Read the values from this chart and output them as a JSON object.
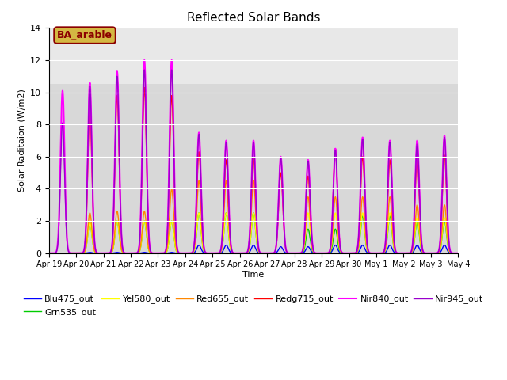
{
  "title": "Reflected Solar Bands",
  "xlabel": "Time",
  "ylabel": "Solar Raditaion (W/m2)",
  "ylim": [
    0,
    14
  ],
  "annotation": "BA_arable",
  "annotation_color": "#8B0000",
  "annotation_bg": "#d4b843",
  "legend_labels": [
    "Blu475_out",
    "Grn535_out",
    "Yel580_out",
    "Red655_out",
    "Redg715_out",
    "Nir840_out",
    "Nir945_out"
  ],
  "line_colors": [
    "#0000ff",
    "#00cc00",
    "#ffff00",
    "#ff8800",
    "#ff0000",
    "#ff00ff",
    "#9900cc"
  ],
  "line_widths": [
    1.0,
    1.0,
    1.0,
    1.0,
    1.0,
    1.5,
    1.0
  ],
  "x_tick_labels": [
    "Apr 19",
    "Apr 20",
    "Apr 21",
    "Apr 22",
    "Apr 23",
    "Apr 24",
    "Apr 25",
    "Apr 26",
    "Apr 27",
    "Apr 28",
    "Apr 29",
    "Apr 30",
    "May 1",
    "May 2",
    "May 3",
    "May 4"
  ],
  "shade_above": 10.5,
  "peak_values": {
    "Blu475_out": [
      0.0,
      0.05,
      0.05,
      0.05,
      0.05,
      0.5,
      0.5,
      0.5,
      0.4,
      0.4,
      0.5,
      0.5,
      0.5,
      0.5,
      0.5,
      0.0
    ],
    "Grn535_out": [
      0.0,
      1.9,
      2.0,
      2.0,
      2.0,
      2.5,
      2.5,
      2.5,
      0.0,
      1.5,
      1.5,
      2.3,
      2.3,
      2.0,
      2.0,
      0.0
    ],
    "Yel580_out": [
      0.0,
      1.9,
      2.0,
      2.0,
      2.0,
      2.5,
      2.5,
      2.5,
      0.0,
      2.5,
      2.5,
      2.5,
      2.5,
      2.2,
      2.2,
      0.0
    ],
    "Red655_out": [
      0.0,
      2.5,
      2.6,
      2.6,
      4.0,
      4.5,
      4.5,
      4.5,
      0.0,
      3.5,
      3.5,
      3.5,
      3.5,
      3.0,
      3.0,
      0.0
    ],
    "Redg715_out": [
      0.0,
      8.8,
      9.8,
      10.3,
      9.8,
      6.3,
      5.8,
      5.9,
      5.0,
      4.8,
      6.5,
      6.0,
      5.8,
      5.9,
      6.1,
      0.0
    ],
    "Nir840_out": [
      10.1,
      10.6,
      11.3,
      12.0,
      12.0,
      7.5,
      7.0,
      7.0,
      6.0,
      5.8,
      6.5,
      7.2,
      7.0,
      7.0,
      7.3,
      0.0
    ],
    "Nir945_out": [
      8.1,
      10.4,
      11.0,
      11.4,
      11.4,
      7.4,
      6.9,
      6.9,
      5.9,
      5.7,
      6.4,
      7.1,
      6.9,
      6.8,
      7.2,
      0.0
    ]
  }
}
